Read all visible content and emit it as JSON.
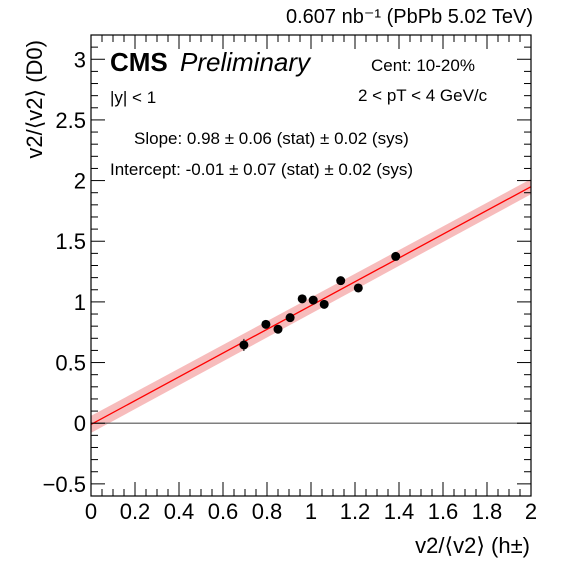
{
  "chart_data": {
    "type": "scatter",
    "header_right": "0.607 nb⁻¹ (PbPb 5.02 TeV)",
    "cms_label": "CMS",
    "prelim_label": "Preliminary",
    "rapidity_label": "|y| < 1",
    "centrality_label": "Cent: 10-20%",
    "pt_label": "2 < pT < 4 GeV/c",
    "slope_label": "Slope: 0.98 ± 0.06 (stat) ± 0.02 (sys)",
    "intercept_label": "Intercept: -0.01 ± 0.07 (stat) ± 0.02 (sys)",
    "xlabel": "v2/⟨v2⟩ (h±)",
    "ylabel": "v2/⟨v2⟩ (D0)",
    "xlim": [
      0,
      2
    ],
    "ylim": [
      -0.6,
      3.2
    ],
    "xticks": [
      "0",
      "0.2",
      "0.4",
      "0.6",
      "0.8",
      "1",
      "1.2",
      "1.4",
      "1.6",
      "1.8",
      "2"
    ],
    "yticks": [
      "−0.5",
      "0",
      "0.5",
      "1",
      "1.5",
      "2",
      "2.5",
      "3"
    ],
    "points": [
      {
        "x": 0.695,
        "y": 0.645,
        "err": 0.05
      },
      {
        "x": 0.795,
        "y": 0.815,
        "err": 0.03
      },
      {
        "x": 0.85,
        "y": 0.775,
        "err": 0.03
      },
      {
        "x": 0.905,
        "y": 0.87,
        "err": 0.025
      },
      {
        "x": 0.96,
        "y": 1.025,
        "err": 0.02
      },
      {
        "x": 1.01,
        "y": 1.015,
        "err": 0.02
      },
      {
        "x": 1.06,
        "y": 0.98,
        "err": 0.02
      },
      {
        "x": 1.135,
        "y": 1.175,
        "err": 0.02
      },
      {
        "x": 1.215,
        "y": 1.115,
        "err": 0.02
      },
      {
        "x": 1.385,
        "y": 1.375,
        "err": 0.02
      }
    ],
    "fit": {
      "slope": 0.98,
      "intercept": -0.01,
      "band_halfwidth": 0.07
    },
    "colors": {
      "fit_line": "#ff0000",
      "fit_band": "#f4a5a5",
      "points": "#000000",
      "zero_line": "#555555"
    }
  }
}
